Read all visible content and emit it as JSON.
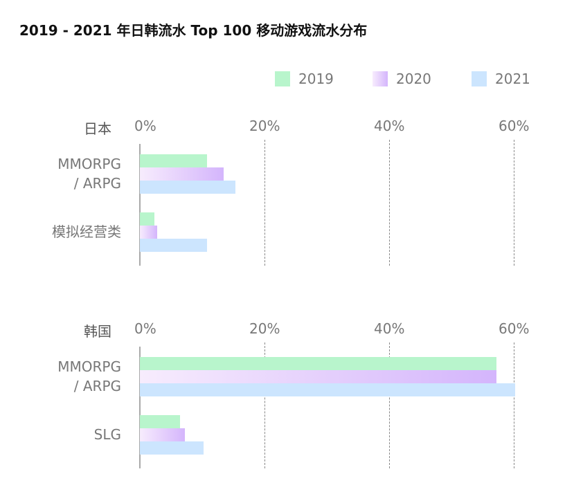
{
  "chart_data": {
    "type": "bar",
    "orientation": "horizontal",
    "title": "2019 - 2021 年日韩流水 Top 100 移动游戏流水分布",
    "legend": {
      "position": "top-right",
      "entries": [
        "2019",
        "2020",
        "2021"
      ]
    },
    "series_colors": {
      "2019": "#b8f5cc",
      "2020": [
        "#f7ecfd",
        "#d4b5fc"
      ],
      "2021": "#cce5fe"
    },
    "xlim": [
      0,
      60
    ],
    "ticks": [
      "0%",
      "20%",
      "40%",
      "60%"
    ],
    "grid": true,
    "panels": [
      {
        "label": "日本",
        "categories": [
          "MMORPG\n/ ARPG",
          "模拟经营类"
        ],
        "series": [
          {
            "name": "2019",
            "values": [
              10.8,
              2.3
            ]
          },
          {
            "name": "2020",
            "values": [
              13.4,
              2.8
            ]
          },
          {
            "name": "2021",
            "values": [
              15.3,
              10.8
            ]
          }
        ]
      },
      {
        "label": "韩国",
        "categories": [
          "MMORPG\n/ ARPG",
          "SLG"
        ],
        "series": [
          {
            "name": "2019",
            "values": [
              57.2,
              6.4
            ]
          },
          {
            "name": "2020",
            "values": [
              57.2,
              7.2
            ]
          },
          {
            "name": "2021",
            "values": [
              60.2,
              10.2
            ]
          }
        ]
      }
    ]
  }
}
